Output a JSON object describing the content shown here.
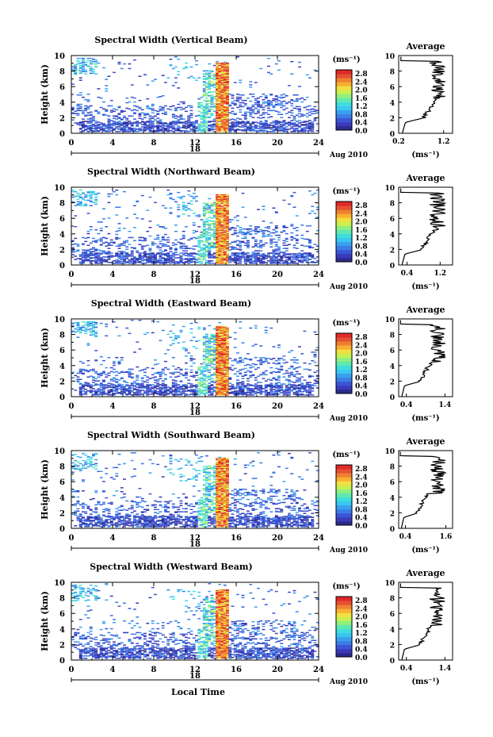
{
  "figure": {
    "xlabel": "Local Time",
    "colorbar_unit": "(ms⁻¹)",
    "avg_title": "Average",
    "avg_unit": "(ms⁻¹)",
    "ylabel": "Height (km)",
    "date_label": "Aug 2010",
    "day_label": "18",
    "colorbar": {
      "ticks": [
        "2.8",
        "2.4",
        "2.0",
        "1.6",
        "1.2",
        "0.8",
        "0.4",
        "0.0"
      ],
      "colors": [
        "#2b2b8c",
        "#3a3ab8",
        "#3b55d8",
        "#3b7de6",
        "#3aa0ee",
        "#38c8f0",
        "#3fdede",
        "#5fe8b0",
        "#8ff080",
        "#c8f050",
        "#f0e040",
        "#f8b030",
        "#f08030",
        "#e85030",
        "#e02828"
      ]
    }
  },
  "chart_data": [
    {
      "type": "heatmap",
      "title": "Spectral Width (Vertical Beam)",
      "xlabel": "",
      "ylabel": "Height (km)",
      "x_ticks": [
        0,
        4,
        8,
        12,
        16,
        20,
        24
      ],
      "xlim": [
        0,
        24
      ],
      "y_ticks": [
        0,
        2,
        4,
        6,
        8,
        10
      ],
      "ylim": [
        0,
        10
      ],
      "colorbar_range": [
        0.0,
        2.8
      ],
      "average_profile": {
        "title": "Average",
        "x_ticks": [
          0.2,
          1.2
        ],
        "xlim": [
          0.2,
          1.4
        ],
        "xlabel": "(ms⁻¹)"
      }
    },
    {
      "type": "heatmap",
      "title": "Spectral Width (Northward Beam)",
      "xlabel": "",
      "ylabel": "Height (km)",
      "x_ticks": [
        0,
        4,
        8,
        12,
        16,
        20,
        24
      ],
      "xlim": [
        0,
        24
      ],
      "y_ticks": [
        0,
        2,
        4,
        6,
        8,
        10
      ],
      "ylim": [
        0,
        10
      ],
      "colorbar_range": [
        0.0,
        2.8
      ],
      "average_profile": {
        "title": "Average",
        "x_ticks": [
          0.4,
          1.2
        ],
        "xlim": [
          0.2,
          1.5
        ],
        "xlabel": "(ms⁻¹)"
      }
    },
    {
      "type": "heatmap",
      "title": "Spectral Width (Eastward Beam)",
      "xlabel": "",
      "ylabel": "Height (km)",
      "x_ticks": [
        0,
        4,
        8,
        12,
        16,
        20,
        24
      ],
      "xlim": [
        0,
        24
      ],
      "y_ticks": [
        0,
        2,
        4,
        6,
        8,
        10
      ],
      "ylim": [
        0,
        10
      ],
      "colorbar_range": [
        0.0,
        2.8
      ],
      "average_profile": {
        "title": "Average",
        "x_ticks": [
          0.4,
          1.4
        ],
        "xlim": [
          0.2,
          1.6
        ],
        "xlabel": "(ms⁻¹)"
      }
    },
    {
      "type": "heatmap",
      "title": "Spectral Width (Southward Beam)",
      "xlabel": "",
      "ylabel": "Height (km)",
      "x_ticks": [
        0,
        4,
        8,
        12,
        16,
        20,
        24
      ],
      "xlim": [
        0,
        24
      ],
      "y_ticks": [
        0,
        2,
        4,
        6,
        8,
        10
      ],
      "ylim": [
        0,
        10
      ],
      "colorbar_range": [
        0.0,
        2.8
      ],
      "average_profile": {
        "title": "Average",
        "x_ticks": [
          0.4,
          1.6
        ],
        "xlim": [
          0.2,
          1.8
        ],
        "xlabel": "(ms⁻¹)"
      }
    },
    {
      "type": "heatmap",
      "title": "Spectral Width (Westward Beam)",
      "xlabel": "Local Time",
      "ylabel": "Height (km)",
      "x_ticks": [
        0,
        4,
        8,
        12,
        16,
        20,
        24
      ],
      "xlim": [
        0,
        24
      ],
      "y_ticks": [
        0,
        2,
        4,
        6,
        8,
        10
      ],
      "ylim": [
        0,
        10
      ],
      "colorbar_range": [
        0.0,
        2.8
      ],
      "average_profile": {
        "title": "Average",
        "x_ticks": [
          0.4,
          1.4
        ],
        "xlim": [
          0.2,
          1.6
        ],
        "xlabel": "(ms⁻¹)"
      }
    }
  ]
}
